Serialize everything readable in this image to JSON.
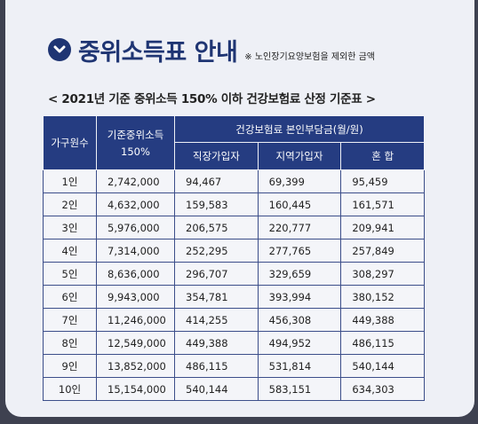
{
  "header": {
    "title": "중위소득표 안내",
    "note": "※ 노인장기요양보험을 제외한 금액",
    "subtitle": "< 2021년 기준 중위소득 150% 이하 건강보험료 산정 기준표 >"
  },
  "table": {
    "col_household": "가구원수",
    "col_median_line1": "기준중위소득",
    "col_median_line2": "150%",
    "col_group": "건강보험료 본인부담금(월/원)",
    "col_employee": "직장가입자",
    "col_regional": "지역가입자",
    "col_mixed": "혼 합",
    "rows": [
      {
        "household": "1인",
        "median": "2,742,000",
        "employee": "94,467",
        "regional": "69,399",
        "mixed": "95,459"
      },
      {
        "household": "2인",
        "median": "4,632,000",
        "employee": "159,583",
        "regional": "160,445",
        "mixed": "161,571"
      },
      {
        "household": "3인",
        "median": "5,976,000",
        "employee": "206,575",
        "regional": "220,777",
        "mixed": "209,941"
      },
      {
        "household": "4인",
        "median": "7,314,000",
        "employee": "252,295",
        "regional": "277,765",
        "mixed": "257,849"
      },
      {
        "household": "5인",
        "median": "8,636,000",
        "employee": "296,707",
        "regional": "329,659",
        "mixed": "308,297"
      },
      {
        "household": "6인",
        "median": "9,943,000",
        "employee": "354,781",
        "regional": "393,994",
        "mixed": "380,152"
      },
      {
        "household": "7인",
        "median": "11,246,000",
        "employee": "414,255",
        "regional": "456,308",
        "mixed": "449,388"
      },
      {
        "household": "8인",
        "median": "12,549,000",
        "employee": "449,388",
        "regional": "494,952",
        "mixed": "486,115"
      },
      {
        "household": "9인",
        "median": "13,852,000",
        "employee": "486,115",
        "regional": "531,814",
        "mixed": "540,144"
      },
      {
        "household": "10인",
        "median": "15,154,000",
        "employee": "540,144",
        "regional": "583,151",
        "mixed": "634,303"
      }
    ]
  },
  "colors": {
    "navy": "#253c81",
    "title_navy": "#1f3573",
    "card_bg": "#eef0f6",
    "frame_bg": "#3e4150"
  },
  "icons": {
    "title_badge": "chevron-down-circle-icon"
  }
}
